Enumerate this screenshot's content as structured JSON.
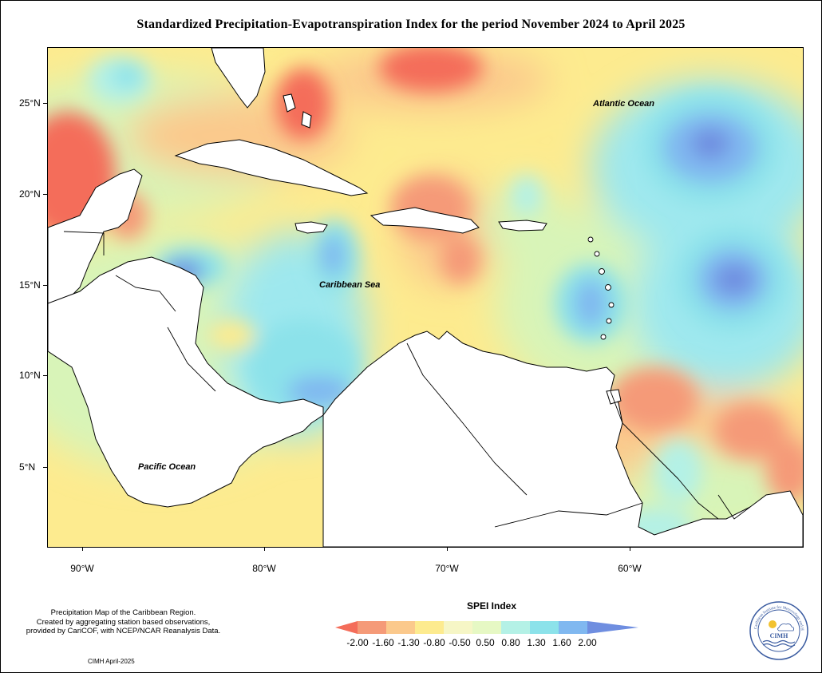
{
  "title": "Standardized Precipitation-Evapotranspiration Index for the period November 2024 to April 2025",
  "axes": {
    "lat_labels": [
      "25°N",
      "20°N",
      "15°N",
      "10°N",
      "5°N"
    ],
    "lon_labels": [
      "90°W",
      "80°W",
      "70°W",
      "60°W"
    ]
  },
  "map_labels": {
    "atlantic": "Atlantic Ocean",
    "caribbean": "Caribbean Sea",
    "pacific": "Pacific Ocean"
  },
  "notes": {
    "line1": "Precipitation Map of the Caribbean Region.",
    "line2": "Created by aggregating station based observations,",
    "line3": "provided by CariCOF, with NCEP/NCAR Reanalysis Data.",
    "credit": "CIMH April-2025"
  },
  "legend": {
    "title": "SPEI Index",
    "tick_labels": [
      "-2.00",
      "-1.60",
      "-1.30",
      "-0.80",
      "-0.50",
      "0.50",
      "0.80",
      "1.30",
      "1.60",
      "2.00"
    ],
    "colors": [
      "#f46d5a",
      "#f59a78",
      "#fbc98c",
      "#fdeb8f",
      "#f6f6c6",
      "#e6f8c4",
      "#b4f1e6",
      "#8ce2ea",
      "#80b8f0",
      "#6f8ee0"
    ]
  },
  "logo": {
    "name": "CIMH",
    "ring_text": "Caribbean Institute for Meteorology and Hydrology"
  }
}
